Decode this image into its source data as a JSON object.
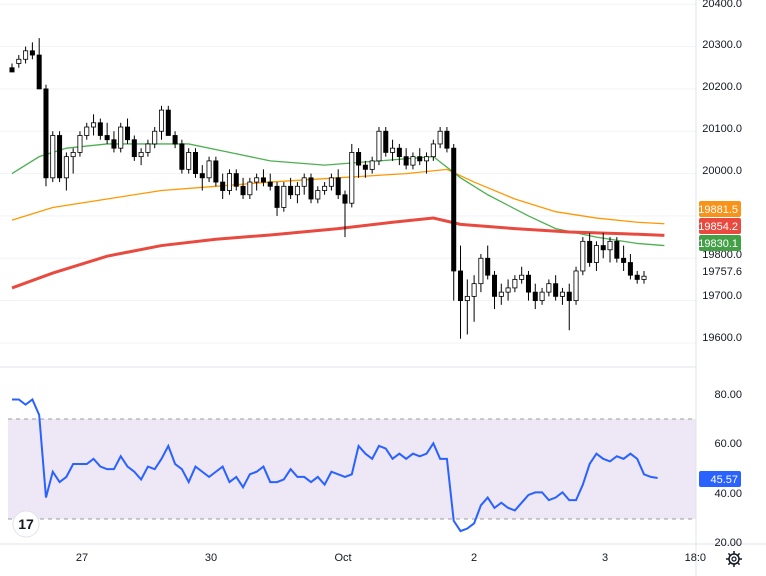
{
  "colors": {
    "up": "#ffffff",
    "down": "#000000",
    "wick": "#000000",
    "ma_fast": "#4caf50",
    "ma_mid": "#ff9800",
    "ma_slow": "#e84a3f",
    "rsi_line": "#2962ff",
    "rsi_band": "#ede7f6",
    "grid": "#f0f3fa",
    "badge_orange": "#f7931a",
    "badge_red": "#e84a3f",
    "badge_green": "#43a047",
    "badge_blue": "#2962ff",
    "badge_white": "#ffffff"
  },
  "price_axis": {
    "ticks": [
      "20400.0",
      "20300.0",
      "20200.0",
      "20100.0",
      "20000.0",
      "19800.0",
      "19700.0",
      "19600.0"
    ],
    "last_price": "19757.6"
  },
  "price_badges": [
    {
      "label": "19881.5",
      "color_key": "badge_orange"
    },
    {
      "label": "19854.2",
      "color_key": "badge_red"
    },
    {
      "label": "19830.1",
      "color_key": "badge_green"
    }
  ],
  "rsi_axis": {
    "ticks": [
      "80.00",
      "60.00",
      "40.00",
      "20.00"
    ],
    "current": "45.57"
  },
  "time_axis": {
    "labels": [
      "27",
      "30",
      "Oct",
      "2",
      "3",
      "18:0"
    ]
  },
  "watermark": "17",
  "settings_icon": "gear-icon",
  "chart_data": {
    "type": "candlestick",
    "price_range": [
      19555,
      20410
    ],
    "rsi_range": [
      20,
      82
    ],
    "rsi_bands": [
      30,
      70
    ],
    "candles": [
      [
        20250,
        20260,
        20240,
        20240
      ],
      [
        20260,
        20280,
        20250,
        20270
      ],
      [
        20270,
        20300,
        20260,
        20290
      ],
      [
        20290,
        20310,
        20270,
        20280
      ],
      [
        20280,
        20320,
        20200,
        20200
      ],
      [
        20200,
        20210,
        19970,
        19990
      ],
      [
        19990,
        20100,
        19980,
        20090
      ],
      [
        20090,
        20100,
        19980,
        19990
      ],
      [
        19990,
        20050,
        19960,
        20040
      ],
      [
        20040,
        20060,
        20000,
        20050
      ],
      [
        20050,
        20100,
        20040,
        20090
      ],
      [
        20090,
        20120,
        20080,
        20110
      ],
      [
        20110,
        20140,
        20090,
        20120
      ],
      [
        20120,
        20130,
        20080,
        20090
      ],
      [
        20090,
        20120,
        20070,
        20080
      ],
      [
        20080,
        20100,
        20050,
        20060
      ],
      [
        20060,
        20120,
        20050,
        20110
      ],
      [
        20110,
        20130,
        20070,
        20080
      ],
      [
        20080,
        20090,
        20030,
        20040
      ],
      [
        20040,
        20060,
        20020,
        20050
      ],
      [
        20050,
        20080,
        20040,
        20070
      ],
      [
        20070,
        20110,
        20060,
        20100
      ],
      [
        20100,
        20160,
        20080,
        20150
      ],
      [
        20150,
        20160,
        20090,
        20090
      ],
      [
        20090,
        20100,
        20060,
        20070
      ],
      [
        20070,
        20080,
        20000,
        20010
      ],
      [
        20010,
        20060,
        20000,
        20050
      ],
      [
        20050,
        20060,
        19990,
        20000
      ],
      [
        20000,
        20020,
        19960,
        19990
      ],
      [
        19990,
        20040,
        19980,
        20030
      ],
      [
        20030,
        20040,
        19970,
        19980
      ],
      [
        19980,
        20000,
        19940,
        19960
      ],
      [
        19960,
        20010,
        19950,
        20000
      ],
      [
        20000,
        20010,
        19960,
        19970
      ],
      [
        19970,
        19990,
        19940,
        19950
      ],
      [
        19950,
        19990,
        19940,
        19980
      ],
      [
        19980,
        20000,
        19960,
        19990
      ],
      [
        19990,
        20010,
        19970,
        19980
      ],
      [
        19980,
        20000,
        19960,
        19970
      ],
      [
        19970,
        19980,
        19900,
        19920
      ],
      [
        19920,
        19980,
        19910,
        19970
      ],
      [
        19970,
        19990,
        19940,
        19950
      ],
      [
        19950,
        19980,
        19930,
        19970
      ],
      [
        19970,
        20000,
        19950,
        19990
      ],
      [
        19990,
        20000,
        19930,
        19940
      ],
      [
        19940,
        19970,
        19930,
        19960
      ],
      [
        19960,
        19980,
        19950,
        19970
      ],
      [
        19970,
        20000,
        19960,
        19990
      ],
      [
        19990,
        20010,
        19940,
        19950
      ],
      [
        19950,
        19960,
        19850,
        19930
      ],
      [
        19930,
        20070,
        19920,
        20050
      ],
      [
        20050,
        20060,
        19990,
        20020
      ],
      [
        20020,
        20030,
        19990,
        20010
      ],
      [
        20010,
        20040,
        20000,
        20030
      ],
      [
        20030,
        20110,
        20020,
        20100
      ],
      [
        20100,
        20110,
        20040,
        20050
      ],
      [
        20050,
        20080,
        20030,
        20060
      ],
      [
        20060,
        20070,
        20020,
        20040
      ],
      [
        20040,
        20060,
        20010,
        20020
      ],
      [
        20020,
        20050,
        20010,
        20040
      ],
      [
        20040,
        20060,
        20020,
        20030
      ],
      [
        20030,
        20050,
        20000,
        20040
      ],
      [
        20040,
        20080,
        20030,
        20070
      ],
      [
        20070,
        20110,
        20060,
        20100
      ],
      [
        20100,
        20110,
        20050,
        20060
      ],
      [
        20060,
        20070,
        19700,
        19770
      ],
      [
        19770,
        19830,
        19610,
        19700
      ],
      [
        19700,
        19750,
        19620,
        19710
      ],
      [
        19710,
        19760,
        19650,
        19740
      ],
      [
        19740,
        19810,
        19720,
        19800
      ],
      [
        19800,
        19830,
        19750,
        19760
      ],
      [
        19760,
        19770,
        19680,
        19710
      ],
      [
        19710,
        19740,
        19690,
        19720
      ],
      [
        19720,
        19750,
        19700,
        19730
      ],
      [
        19730,
        19760,
        19720,
        19750
      ],
      [
        19750,
        19780,
        19740,
        19760
      ],
      [
        19760,
        19770,
        19700,
        19720
      ],
      [
        19720,
        19740,
        19680,
        19700
      ],
      [
        19700,
        19730,
        19690,
        19720
      ],
      [
        19720,
        19750,
        19710,
        19740
      ],
      [
        19740,
        19760,
        19700,
        19710
      ],
      [
        19710,
        19730,
        19690,
        19720
      ],
      [
        19720,
        19740,
        19630,
        19700
      ],
      [
        19700,
        19780,
        19690,
        19770
      ],
      [
        19770,
        19850,
        19760,
        19840
      ],
      [
        19840,
        19860,
        19780,
        19790
      ],
      [
        19790,
        19840,
        19770,
        19830
      ],
      [
        19830,
        19860,
        19800,
        19820
      ],
      [
        19820,
        19850,
        19790,
        19840
      ],
      [
        19840,
        19850,
        19790,
        19800
      ],
      [
        19800,
        19830,
        19770,
        19790
      ],
      [
        19790,
        19810,
        19750,
        19760
      ],
      [
        19760,
        19770,
        19740,
        19750
      ],
      [
        19750,
        19770,
        19740,
        19757.6
      ]
    ],
    "ma_fast": [
      [
        0,
        20000
      ],
      [
        4,
        20040
      ],
      [
        8,
        20060
      ],
      [
        14,
        20070
      ],
      [
        20,
        20070
      ],
      [
        26,
        20070
      ],
      [
        32,
        20050
      ],
      [
        38,
        20030
      ],
      [
        46,
        20020
      ],
      [
        54,
        20030
      ],
      [
        62,
        20040
      ],
      [
        66,
        19990
      ],
      [
        70,
        19950
      ],
      [
        76,
        19900
      ],
      [
        80,
        19870
      ],
      [
        86,
        19850
      ],
      [
        92,
        19835
      ],
      [
        96,
        19830
      ]
    ],
    "ma_mid": [
      [
        0,
        19890
      ],
      [
        6,
        19920
      ],
      [
        14,
        19940
      ],
      [
        22,
        19960
      ],
      [
        30,
        19970
      ],
      [
        38,
        19980
      ],
      [
        48,
        19990
      ],
      [
        58,
        20000
      ],
      [
        64,
        20010
      ],
      [
        68,
        19980
      ],
      [
        74,
        19940
      ],
      [
        80,
        19910
      ],
      [
        86,
        19895
      ],
      [
        92,
        19885
      ],
      [
        96,
        19881.5
      ]
    ],
    "ma_slow": [
      [
        0,
        19730
      ],
      [
        6,
        19765
      ],
      [
        14,
        19805
      ],
      [
        22,
        19830
      ],
      [
        30,
        19845
      ],
      [
        38,
        19855
      ],
      [
        48,
        19870
      ],
      [
        56,
        19885
      ],
      [
        62,
        19895
      ],
      [
        66,
        19880
      ],
      [
        74,
        19870
      ],
      [
        82,
        19862
      ],
      [
        90,
        19858
      ],
      [
        96,
        19854.2
      ]
    ],
    "rsi": [
      76,
      76,
      74,
      76,
      70,
      38,
      48,
      44,
      46,
      51,
      51,
      51,
      53,
      50,
      49,
      49,
      54,
      50,
      48,
      45,
      50,
      49,
      53,
      58,
      51,
      49,
      44,
      50,
      48,
      46,
      48,
      50,
      44,
      46,
      42,
      47,
      48,
      50,
      44,
      44,
      45,
      49,
      46,
      46,
      44,
      46,
      43,
      48,
      47,
      46,
      47,
      58,
      55,
      53,
      58,
      57,
      53,
      55,
      53,
      55,
      54,
      55,
      59,
      53,
      53,
      29,
      25,
      26,
      28,
      35,
      38,
      34,
      36,
      34,
      33,
      36,
      39,
      40,
      40,
      37,
      38,
      40,
      37,
      37,
      43,
      51,
      55,
      53,
      52,
      54,
      53,
      55,
      53,
      47,
      46,
      45.57
    ]
  }
}
